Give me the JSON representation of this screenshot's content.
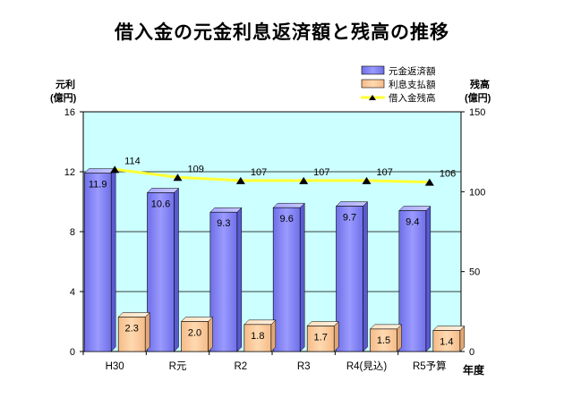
{
  "chart_data": {
    "type": "bar",
    "title": "借入金の元金利息返済額と残高の推移",
    "categories": [
      "H30",
      "R元",
      "R2",
      "R3",
      "R4(見込)",
      "R5予算"
    ],
    "xlabel": "年度",
    "y_left": {
      "label_line1": "元利",
      "label_line2": "(億円)",
      "lim": [
        0,
        16
      ],
      "ticks": [
        0,
        4,
        8,
        12,
        16
      ]
    },
    "y_right": {
      "label_line1": "残高",
      "label_line2": "(億円)",
      "lim": [
        0,
        150
      ],
      "ticks": [
        0,
        50,
        100,
        150
      ]
    },
    "series": [
      {
        "name": "元金返済額",
        "type": "bar",
        "axis": "left",
        "color": "#8080ff",
        "values": [
          11.9,
          10.6,
          9.3,
          9.6,
          9.7,
          9.4
        ],
        "labels": [
          "11.9",
          "10.6",
          "9.3",
          "9.6",
          "9.7",
          "9.4"
        ]
      },
      {
        "name": "利息支払額",
        "type": "bar",
        "axis": "left",
        "color": "#ffcc99",
        "values": [
          2.3,
          2.0,
          1.8,
          1.7,
          1.5,
          1.4
        ],
        "labels": [
          "2.3",
          "2.0",
          "1.8",
          "1.7",
          "1.5",
          "1.4"
        ]
      },
      {
        "name": "借入金残高",
        "type": "line",
        "axis": "right",
        "color": "#ffff33",
        "values": [
          114,
          109,
          107,
          107,
          107,
          106
        ],
        "labels": [
          "114",
          "109",
          "107",
          "107",
          "107",
          "106"
        ]
      }
    ],
    "plot_background": "#ccffff",
    "grid": true,
    "legend_position": "top-right"
  }
}
